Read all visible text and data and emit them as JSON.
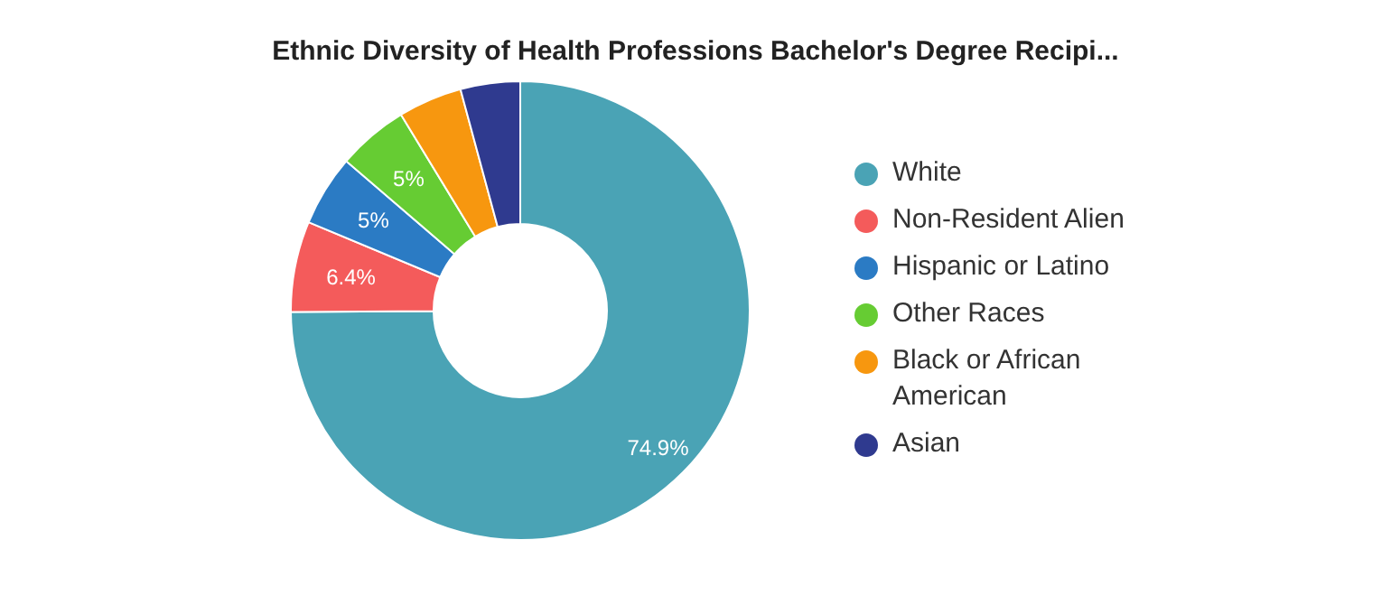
{
  "chart_data": {
    "type": "donut",
    "title": "Ethnic Diversity of Health Professions Bachelor's Degree Recipi...",
    "categories": [
      "White",
      "Non-Resident Alien",
      "Hispanic or Latino",
      "Other Races",
      "Black or African American",
      "Asian"
    ],
    "values": [
      74.9,
      6.4,
      5,
      5,
      4.5,
      4.2
    ],
    "value_labels": [
      "74.9%",
      "6.4%",
      "5%",
      "5%",
      null,
      null
    ],
    "colors": [
      "#4aa3b5",
      "#f45b5b",
      "#2b7bc4",
      "#66cc33",
      "#f7970f",
      "#2f3a8f"
    ],
    "legend": "right"
  }
}
